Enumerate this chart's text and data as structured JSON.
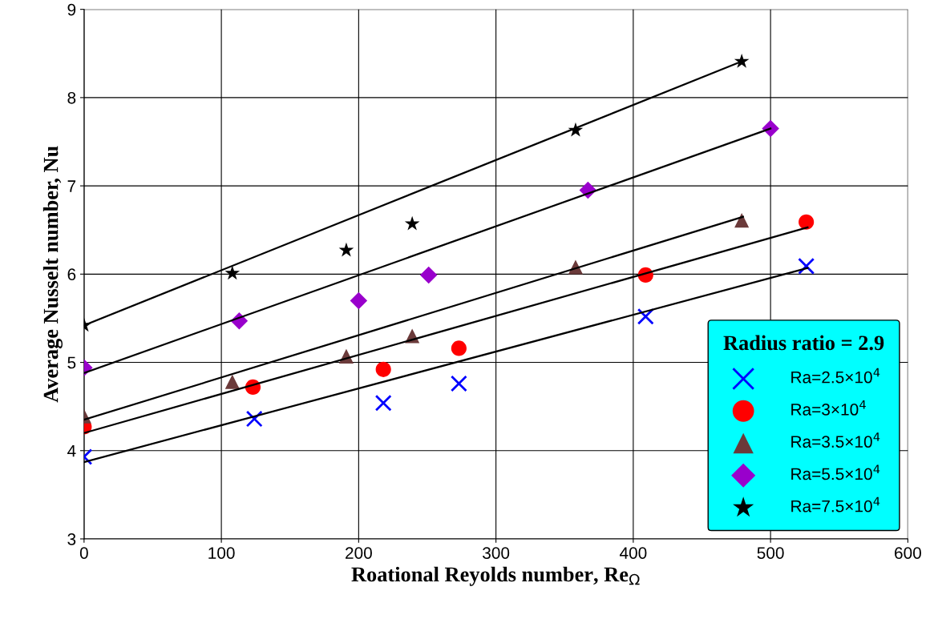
{
  "chart_data": {
    "type": "scatter",
    "xlabel": "Roational Reyolds number, Re$_{Ω}$",
    "ylabel": "Average Nusselt number, Nu",
    "legend_title": "Radius ratio = 2.9",
    "xlim": [
      0,
      600
    ],
    "xticks": [
      0,
      100,
      200,
      300,
      400,
      500,
      600
    ],
    "ylim": [
      3,
      9
    ],
    "yticks": [
      3,
      4,
      5,
      6,
      7,
      8,
      9
    ],
    "grid": true,
    "legend": "bottom right",
    "series": [
      {
        "name": "Ra=2.5×10$^{4}$",
        "color": "#0000ff",
        "marker": "cross",
        "x": [
          0,
          124,
          218,
          273,
          409,
          526
        ],
        "values": [
          3.93,
          4.36,
          4.54,
          4.76,
          5.52,
          6.09
        ]
      },
      {
        "name": "Ra=3×10$^{4}$",
        "color": "#ff0000",
        "marker": "circle",
        "x": [
          0,
          123,
          218,
          273,
          409,
          526
        ],
        "values": [
          4.27,
          4.72,
          4.92,
          5.16,
          5.99,
          6.59
        ]
      },
      {
        "name": "Ra=3.5×10$^{4}$",
        "color": "#6b3a3a",
        "marker": "triangle",
        "x": [
          0,
          108,
          191,
          239,
          358,
          479
        ],
        "values": [
          4.39,
          4.78,
          5.07,
          5.3,
          6.08,
          6.61
        ]
      },
      {
        "name": "Ra=5.5×10$^{4}$",
        "color": "#9900cc",
        "marker": "diamond",
        "x": [
          0,
          113,
          200,
          251,
          367,
          500
        ],
        "values": [
          4.94,
          5.47,
          5.7,
          5.99,
          6.95,
          7.65
        ]
      },
      {
        "name": "Ra=7.5×10$^{4}$",
        "color": "#000000",
        "marker": "star",
        "x": [
          0,
          108,
          191,
          239,
          358,
          479
        ],
        "values": [
          5.42,
          6.01,
          6.27,
          6.57,
          7.63,
          8.41
        ]
      },
      {
        "type": "line",
        "color": "#000000",
        "marker": "none",
        "x": [
          0,
          527
        ],
        "values": [
          3.87,
          6.07
        ]
      },
      {
        "type": "line",
        "color": "#000000",
        "marker": "none",
        "x": [
          0,
          527
        ],
        "values": [
          4.2,
          6.53
        ]
      },
      {
        "type": "line",
        "color": "#000000",
        "marker": "none",
        "x": [
          0,
          480
        ],
        "values": [
          4.35,
          6.65
        ]
      },
      {
        "type": "line",
        "color": "#000000",
        "marker": "none",
        "x": [
          0,
          500
        ],
        "values": [
          4.88,
          7.65
        ]
      },
      {
        "type": "line",
        "color": "#000000",
        "marker": "none",
        "x": [
          0,
          479
        ],
        "values": [
          5.42,
          8.41
        ]
      }
    ]
  }
}
